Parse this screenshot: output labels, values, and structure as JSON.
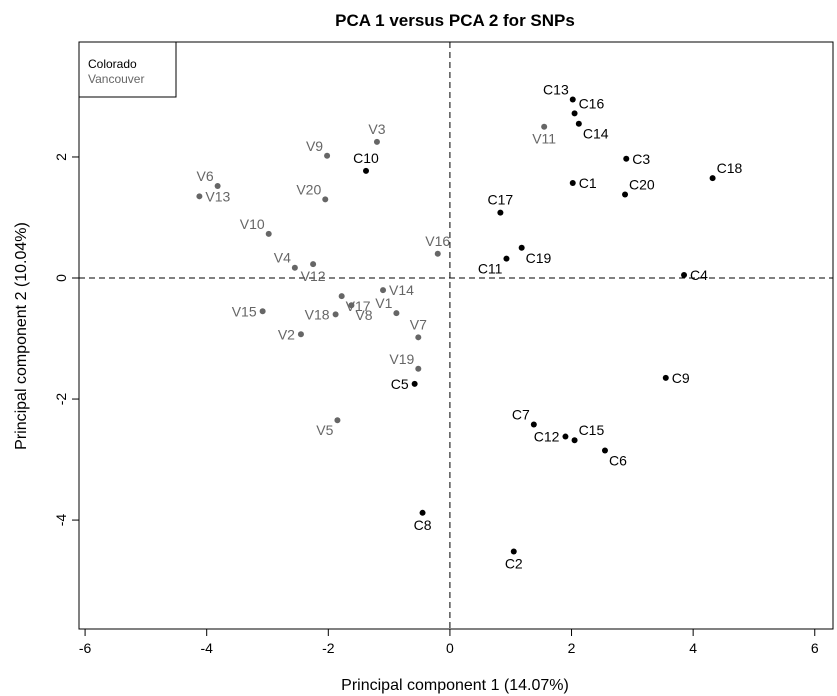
{
  "chart_data": {
    "type": "scatter",
    "title": "PCA 1 versus PCA 2 for SNPs",
    "xlabel": "Principal component 1 (14.07%)",
    "ylabel": "Principal component 2 (10.04%)",
    "xlim": [
      -6.1,
      6.3
    ],
    "ylim": [
      -5.8,
      3.9
    ],
    "x_ticks": [
      -6,
      -4,
      -2,
      0,
      2,
      4,
      6
    ],
    "y_ticks": [
      -4,
      -2,
      0,
      2
    ],
    "reference_lines": {
      "x": 0,
      "y": 0,
      "style": "dashed"
    },
    "legend": {
      "position": "top-left",
      "entries": [
        {
          "name": "Colorado",
          "color": "#000000"
        },
        {
          "name": "Vancouver",
          "color": "#666666"
        }
      ]
    },
    "series": [
      {
        "name": "Colorado",
        "color": "#000000",
        "points": [
          {
            "label": "C1",
            "x": 2.02,
            "y": 1.57,
            "pos": "r"
          },
          {
            "label": "C2",
            "x": 1.05,
            "y": -4.52,
            "pos": "b"
          },
          {
            "label": "C3",
            "x": 2.9,
            "y": 1.97,
            "pos": "r"
          },
          {
            "label": "C4",
            "x": 3.85,
            "y": 0.05,
            "pos": "r"
          },
          {
            "label": "C5",
            "x": -0.58,
            "y": -1.75,
            "pos": "l"
          },
          {
            "label": "C6",
            "x": 2.55,
            "y": -2.85,
            "pos": "br"
          },
          {
            "label": "C7",
            "x": 1.38,
            "y": -2.42,
            "pos": "tl"
          },
          {
            "label": "C8",
            "x": -0.45,
            "y": -3.88,
            "pos": "b"
          },
          {
            "label": "C9",
            "x": 3.55,
            "y": -1.65,
            "pos": "r"
          },
          {
            "label": "C10",
            "x": -1.38,
            "y": 1.77,
            "pos": "t"
          },
          {
            "label": "C11",
            "x": 0.93,
            "y": 0.32,
            "pos": "bl"
          },
          {
            "label": "C12",
            "x": 1.9,
            "y": -2.62,
            "pos": "l"
          },
          {
            "label": "C13",
            "x": 2.02,
            "y": 2.95,
            "pos": "tl"
          },
          {
            "label": "C14",
            "x": 2.12,
            "y": 2.55,
            "pos": "br"
          },
          {
            "label": "C15",
            "x": 2.05,
            "y": -2.68,
            "pos": "tr"
          },
          {
            "label": "C16",
            "x": 2.05,
            "y": 2.72,
            "pos": "tr"
          },
          {
            "label": "C17",
            "x": 0.83,
            "y": 1.08,
            "pos": "t"
          },
          {
            "label": "C18",
            "x": 4.32,
            "y": 1.65,
            "pos": "tr"
          },
          {
            "label": "C19",
            "x": 1.18,
            "y": 0.5,
            "pos": "br"
          },
          {
            "label": "C20",
            "x": 2.88,
            "y": 1.38,
            "pos": "tr"
          }
        ]
      },
      {
        "name": "Vancouver",
        "color": "#666666",
        "points": [
          {
            "label": "V1",
            "x": -0.88,
            "y": -0.58,
            "pos": "tl"
          },
          {
            "label": "V2",
            "x": -2.45,
            "y": -0.93,
            "pos": "l"
          },
          {
            "label": "V3",
            "x": -1.2,
            "y": 2.25,
            "pos": "t"
          },
          {
            "label": "V4",
            "x": -2.55,
            "y": 0.17,
            "pos": "tl"
          },
          {
            "label": "V5",
            "x": -1.85,
            "y": -2.35,
            "pos": "bl"
          },
          {
            "label": "V6",
            "x": -3.82,
            "y": 1.52,
            "pos": "tl"
          },
          {
            "label": "V7",
            "x": -0.52,
            "y": -0.98,
            "pos": "t"
          },
          {
            "label": "V8",
            "x": -1.62,
            "y": -0.45,
            "pos": "br"
          },
          {
            "label": "V9",
            "x": -2.02,
            "y": 2.02,
            "pos": "tl"
          },
          {
            "label": "V10",
            "x": -2.98,
            "y": 0.73,
            "pos": "tl"
          },
          {
            "label": "V11",
            "x": 1.55,
            "y": 2.5,
            "pos": "b"
          },
          {
            "label": "V12",
            "x": -2.25,
            "y": 0.23,
            "pos": "b"
          },
          {
            "label": "V13",
            "x": -4.12,
            "y": 1.35,
            "pos": "r"
          },
          {
            "label": "V14",
            "x": -1.1,
            "y": -0.2,
            "pos": "r"
          },
          {
            "label": "V15",
            "x": -3.08,
            "y": -0.55,
            "pos": "l"
          },
          {
            "label": "V16",
            "x": -0.2,
            "y": 0.4,
            "pos": "t"
          },
          {
            "label": "V17",
            "x": -1.78,
            "y": -0.3,
            "pos": "br"
          },
          {
            "label": "V18",
            "x": -1.88,
            "y": -0.6,
            "pos": "l"
          },
          {
            "label": "V19",
            "x": -0.52,
            "y": -1.5,
            "pos": "tl"
          },
          {
            "label": "V20",
            "x": -2.05,
            "y": 1.3,
            "pos": "tl"
          }
        ]
      }
    ]
  }
}
